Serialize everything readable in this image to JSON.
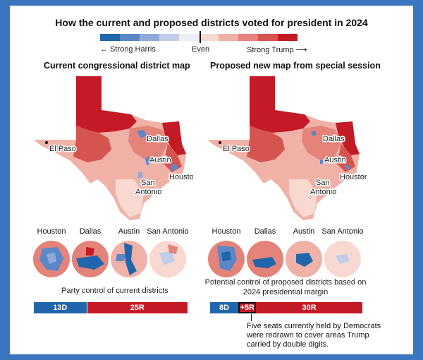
{
  "title": "How the current and proposed districts voted for president in 2024",
  "legend": {
    "left_label": "← Strong Harris",
    "center_label": "Even",
    "right_label": "Strong Trump ⟶",
    "colors": [
      "#2166ac",
      "#5b87c7",
      "#8fa9da",
      "#c3cdea",
      "#eceef6",
      "#f8d9d2",
      "#f0b1a6",
      "#e3837a",
      "#d55450",
      "#c41a26"
    ]
  },
  "maps": [
    {
      "subtitle": "Current congressional district map",
      "cities": {
        "el_paso": "El Paso",
        "dallas": "Dallas",
        "austin": "Austin",
        "san": "San",
        "antonio": "Antonio",
        "houston": "Houston"
      },
      "circles": [
        "Houston",
        "Dallas",
        "Austin",
        "San Antonio"
      ],
      "caption": "Party control of current districts",
      "bar": [
        {
          "label": "13D",
          "seats": 13,
          "party": "D",
          "color": "#2166ac"
        },
        {
          "label": "25R",
          "seats": 25,
          "party": "R",
          "color": "#c41a26"
        }
      ]
    },
    {
      "subtitle": "Proposed new map from special session",
      "cities": {
        "el_paso": "El Paso",
        "dallas": "Dallas",
        "austin": "Austin",
        "san": "San",
        "antonio": "Antonio",
        "houston": "Houston"
      },
      "circles": [
        "Houston",
        "Dallas",
        "Austin",
        "San Antonio"
      ],
      "caption_line1": "Potential control of proposed districts based on",
      "caption_line2": "2024 presidential margin",
      "bar": [
        {
          "label": "8D",
          "seats": 8,
          "party": "D",
          "color": "#2166ac"
        },
        {
          "label": "+5R",
          "seats": 5,
          "party": "R",
          "color": "#c41a26",
          "highlight": true
        },
        {
          "label": "30R",
          "seats": 30,
          "party": "R",
          "color": "#c41a26"
        }
      ],
      "note": [
        "Five seats currently held by Democrats",
        "were redrawn to cover areas Trump",
        "carried by double digits."
      ]
    }
  ]
}
